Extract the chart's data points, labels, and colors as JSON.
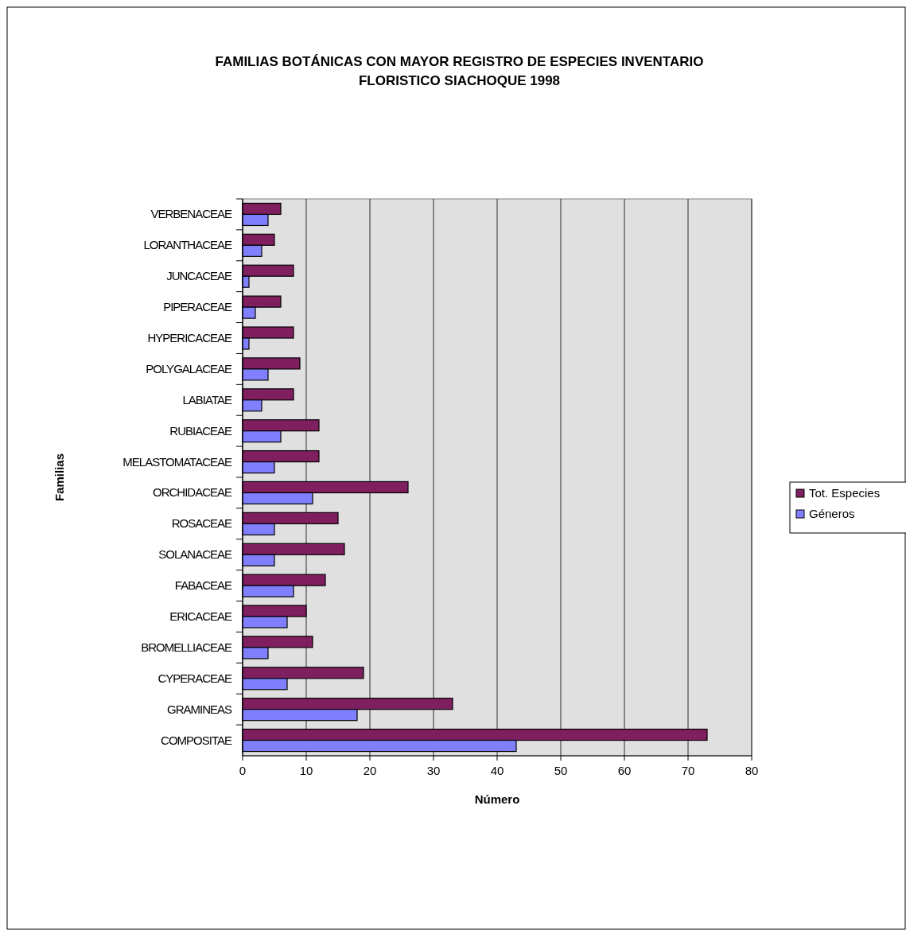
{
  "chart_data": {
    "type": "bar",
    "orientation": "horizontal",
    "title": "FAMILIAS BOTÁNICAS CON MAYOR REGISTRO DE ESPECIES INVENTARIO FLORISTICO SIACHOQUE 1998",
    "xlabel": "Número",
    "ylabel": "Familias",
    "categories": [
      "VERBENACEAE",
      "LORANTHACEAE",
      "JUNCACEAE",
      "PIPERACEAE",
      "HYPERICACEAE",
      "POLYGALACEAE",
      "LABIATAE",
      "RUBIACEAE",
      "MELASTOMATACEAE",
      "ORCHIDACEAE",
      "ROSACEAE",
      "SOLANACEAE",
      "FABACEAE",
      "ERICACEAE",
      "BROMELLIACEAE",
      "CYPERACEAE",
      "GRAMINEAS",
      "COMPOSITAE"
    ],
    "series": [
      {
        "name": "Tot. Especies",
        "color": "#7f1f5f",
        "values": [
          6,
          5,
          8,
          6,
          8,
          9,
          8,
          12,
          12,
          26,
          15,
          16,
          13,
          10,
          11,
          19,
          33,
          73
        ]
      },
      {
        "name": "Géneros",
        "color": "#8080ff",
        "values": [
          4,
          3,
          1,
          2,
          1,
          4,
          3,
          6,
          5,
          11,
          5,
          5,
          8,
          7,
          4,
          7,
          18,
          43
        ]
      }
    ],
    "xlim": [
      0,
      80
    ],
    "xticks": [
      0,
      10,
      20,
      30,
      40,
      50,
      60,
      70,
      80
    ],
    "grid": "x",
    "legend": "right"
  }
}
